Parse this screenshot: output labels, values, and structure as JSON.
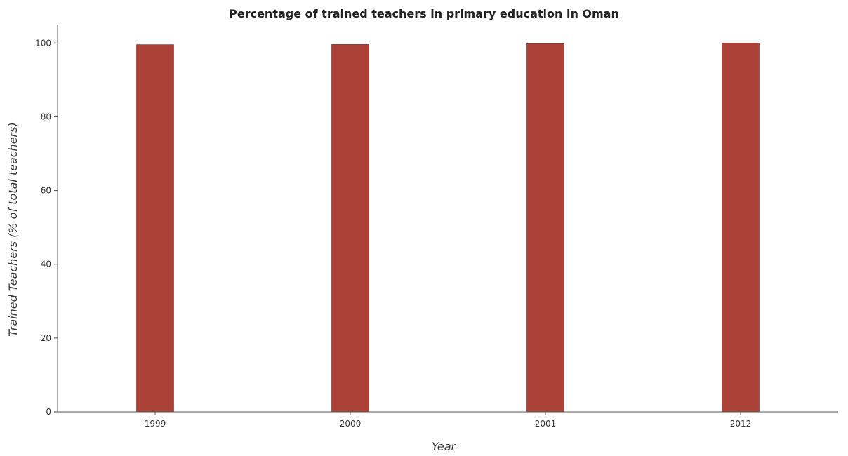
{
  "chart_data": {
    "type": "bar",
    "title": "Percentage of trained teachers in primary education in Oman",
    "xlabel": "Year",
    "ylabel": "Trained Teachers (% of total teachers)",
    "categories": [
      "1999",
      "2000",
      "2001",
      "2012"
    ],
    "values": [
      99.55,
      99.6,
      99.8,
      100.0
    ],
    "ylim": [
      0,
      105
    ],
    "yticks": [
      0,
      20,
      40,
      60,
      80,
      100
    ],
    "grid": false,
    "legend": "none",
    "colors": {
      "bar_fill": "#ac4137",
      "bar_stroke": "#7a2a23",
      "axis": "#555555"
    }
  }
}
